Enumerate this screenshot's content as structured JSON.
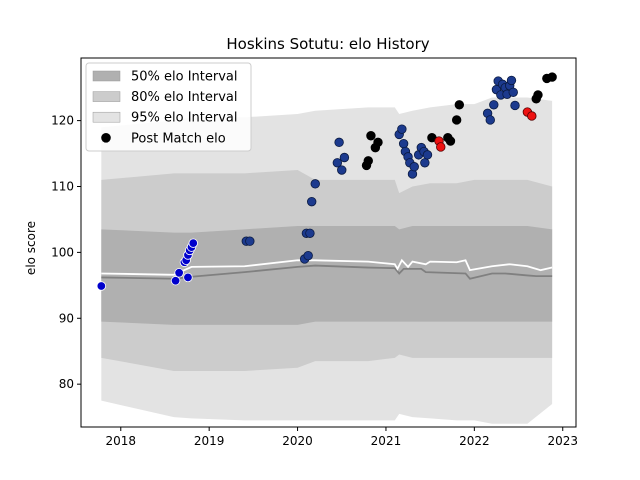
{
  "chart_data": {
    "type": "scatter",
    "title": "Hoskins Sotutu: elo History",
    "xlabel": "",
    "ylabel": "elo score",
    "xlim": [
      2017.55,
      2023.15
    ],
    "ylim": [
      73.5,
      129.5
    ],
    "x_ticks": [
      2018,
      2019,
      2020,
      2021,
      2022,
      2023
    ],
    "y_ticks": [
      80,
      90,
      100,
      110,
      120
    ],
    "legend_position": "upper-left",
    "legend": [
      {
        "label": "50% elo Interval",
        "color": "#b0b0b0"
      },
      {
        "label": "80% elo Interval",
        "color": "#cccccc"
      },
      {
        "label": "95% elo Interval",
        "color": "#e3e3e3"
      },
      {
        "label": "Post Match elo",
        "color": "#000000"
      }
    ],
    "band_x": [
      2017.78,
      2018.6,
      2018.8,
      2019.4,
      2020.0,
      2020.2,
      2020.8,
      2021.1,
      2021.15,
      2021.3,
      2021.5,
      2021.8,
      2022.0,
      2022.2,
      2022.6,
      2022.88
    ],
    "band_95_upper": [
      119.0,
      120.0,
      120.5,
      120.5,
      121.0,
      121.5,
      122.0,
      122.0,
      121.0,
      121.5,
      122.0,
      122.5,
      122.5,
      123.5,
      123.5,
      123.0
    ],
    "band_95_lower": [
      77.5,
      75.0,
      74.8,
      74.5,
      74.5,
      74.5,
      74.5,
      74.5,
      75.5,
      75.0,
      74.8,
      74.5,
      74.5,
      74.0,
      74.0,
      77.0
    ],
    "band_80_upper": [
      111.0,
      112.0,
      112.0,
      112.0,
      112.5,
      111.0,
      111.0,
      111.0,
      109.0,
      110.0,
      110.5,
      110.5,
      111.0,
      111.0,
      111.0,
      110.0
    ],
    "band_80_lower": [
      84.0,
      82.0,
      82.0,
      82.0,
      82.5,
      83.5,
      83.5,
      84.0,
      84.5,
      84.0,
      84.0,
      84.0,
      84.0,
      84.0,
      84.0,
      84.0
    ],
    "band_50_upper": [
      103.5,
      103.0,
      103.0,
      103.5,
      104.0,
      104.0,
      104.0,
      104.0,
      103.5,
      104.0,
      104.0,
      104.0,
      104.0,
      104.0,
      104.0,
      103.5
    ],
    "band_50_lower": [
      89.5,
      89.0,
      89.0,
      89.0,
      89.0,
      89.5,
      89.5,
      89.5,
      89.5,
      89.5,
      89.5,
      89.5,
      89.5,
      89.5,
      89.5,
      89.5
    ],
    "median_line": {
      "x": [
        2017.78,
        2018.6,
        2018.8,
        2019.4,
        2020.0,
        2020.2,
        2020.8,
        2021.1,
        2021.15,
        2021.2,
        2021.4,
        2021.45,
        2021.9,
        2021.95,
        2022.2,
        2022.35,
        2022.6,
        2022.7,
        2022.88
      ],
      "y": [
        96.2,
        96.0,
        96.3,
        97.0,
        97.8,
        98.0,
        97.7,
        97.6,
        96.8,
        97.5,
        97.5,
        97.0,
        96.8,
        96.0,
        96.8,
        96.8,
        96.5,
        96.4,
        96.4
      ],
      "color": "#808080"
    },
    "mean_line": {
      "x": [
        2017.78,
        2018.6,
        2018.8,
        2019.4,
        2020.0,
        2020.2,
        2020.8,
        2021.1,
        2021.13,
        2021.18,
        2021.25,
        2021.3,
        2021.45,
        2021.5,
        2021.8,
        2021.9,
        2021.95,
        2022.2,
        2022.4,
        2022.6,
        2022.75,
        2022.88
      ],
      "y": [
        96.8,
        96.6,
        97.8,
        97.9,
        98.8,
        98.8,
        98.6,
        98.2,
        97.5,
        98.8,
        97.8,
        98.6,
        98.2,
        98.6,
        98.5,
        98.8,
        97.3,
        97.9,
        98.2,
        97.9,
        97.3,
        97.7
      ],
      "color": "#ffffff"
    },
    "series": [
      {
        "color": "#0000cc",
        "edge": "#ffffff",
        "points": [
          [
            2017.78,
            94.9
          ],
          [
            2018.62,
            95.7
          ],
          [
            2018.66,
            96.9
          ],
          [
            2018.72,
            98.5
          ],
          [
            2018.74,
            98.8
          ],
          [
            2018.76,
            99.6
          ],
          [
            2018.78,
            100.3
          ],
          [
            2018.8,
            100.8
          ],
          [
            2018.82,
            101.4
          ],
          [
            2018.76,
            96.2
          ]
        ]
      },
      {
        "color": "#1c3a8e",
        "edge": "#0a1a40",
        "points": [
          [
            2019.42,
            101.7
          ],
          [
            2019.46,
            101.7
          ],
          [
            2020.08,
            99.0
          ],
          [
            2020.12,
            99.5
          ],
          [
            2020.1,
            102.9
          ],
          [
            2020.14,
            102.9
          ],
          [
            2020.16,
            107.7
          ],
          [
            2020.2,
            110.4
          ],
          [
            2020.45,
            113.6
          ],
          [
            2020.47,
            116.7
          ],
          [
            2020.5,
            112.5
          ],
          [
            2020.53,
            114.4
          ],
          [
            2021.15,
            117.9
          ],
          [
            2021.18,
            118.7
          ],
          [
            2021.2,
            116.5
          ],
          [
            2021.22,
            115.3
          ],
          [
            2021.25,
            114.5
          ],
          [
            2021.27,
            113.6
          ],
          [
            2021.3,
            111.9
          ],
          [
            2021.32,
            113.0
          ],
          [
            2021.37,
            114.8
          ],
          [
            2021.4,
            115.9
          ],
          [
            2021.43,
            115.3
          ],
          [
            2021.44,
            113.6
          ],
          [
            2021.47,
            114.8
          ],
          [
            2022.15,
            121.1
          ],
          [
            2022.18,
            120.1
          ],
          [
            2022.22,
            122.4
          ],
          [
            2022.25,
            124.7
          ],
          [
            2022.27,
            126.0
          ],
          [
            2022.3,
            123.9
          ],
          [
            2022.32,
            125.5
          ],
          [
            2022.35,
            125.0
          ],
          [
            2022.37,
            124.0
          ],
          [
            2022.4,
            125.3
          ],
          [
            2022.42,
            126.1
          ],
          [
            2022.44,
            124.3
          ],
          [
            2022.46,
            122.3
          ]
        ]
      },
      {
        "color": "#000000",
        "edge": "#000000",
        "points": [
          [
            2020.78,
            113.2
          ],
          [
            2020.8,
            113.9
          ],
          [
            2020.83,
            117.7
          ],
          [
            2020.88,
            115.9
          ],
          [
            2020.91,
            116.7
          ],
          [
            2021.52,
            117.4
          ],
          [
            2021.7,
            117.4
          ],
          [
            2021.73,
            116.9
          ],
          [
            2021.8,
            120.1
          ],
          [
            2021.83,
            122.4
          ],
          [
            2022.7,
            123.3
          ],
          [
            2022.72,
            123.9
          ],
          [
            2022.82,
            126.4
          ],
          [
            2022.88,
            126.6
          ]
        ]
      },
      {
        "color": "#ee1111",
        "edge": "#550000",
        "points": [
          [
            2021.6,
            116.9
          ],
          [
            2021.62,
            116.0
          ],
          [
            2022.6,
            121.3
          ],
          [
            2022.65,
            120.7
          ]
        ]
      }
    ]
  }
}
